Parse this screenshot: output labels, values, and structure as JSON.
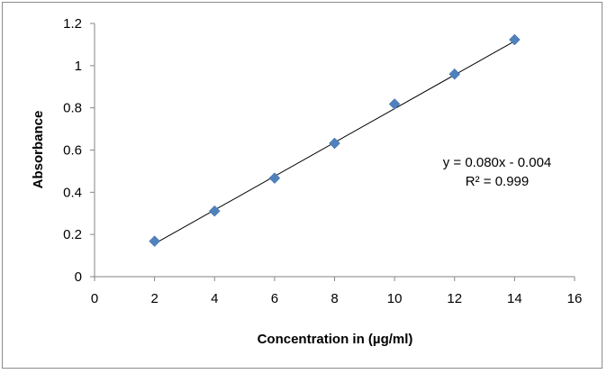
{
  "chart_data": {
    "type": "scatter",
    "title": "",
    "xlabel": "Concentration in (µg/ml)",
    "ylabel": "Absorbance",
    "xlim": [
      0,
      16
    ],
    "ylim": [
      0,
      1.2
    ],
    "x_ticks": [
      0,
      2,
      4,
      6,
      8,
      10,
      12,
      14,
      16
    ],
    "x_tick_labels": [
      "0",
      "2",
      "4",
      "6",
      "8",
      "10",
      "12",
      "14",
      "16"
    ],
    "y_ticks": [
      0,
      0.2,
      0.4,
      0.6,
      0.8,
      1.0,
      1.2
    ],
    "y_tick_labels": [
      "0",
      "0.2",
      "0.4",
      "0.6",
      "0.8",
      "1",
      "1.2"
    ],
    "grid": false,
    "legend": "none",
    "series": [
      {
        "marker": "diamond",
        "color": "#4f81bd",
        "x": [
          2,
          4,
          6,
          8,
          10,
          12,
          14
        ],
        "y": [
          0.168,
          0.311,
          0.467,
          0.632,
          0.818,
          0.96,
          1.123
        ]
      }
    ],
    "trendline": {
      "type": "linear",
      "slope": 0.08,
      "intercept": -0.004,
      "x_range": [
        2,
        14
      ],
      "color": "#000000"
    },
    "annotations": {
      "equation": "y = 0.080x - 0.004",
      "r_squared": "R² = 0.999"
    }
  }
}
